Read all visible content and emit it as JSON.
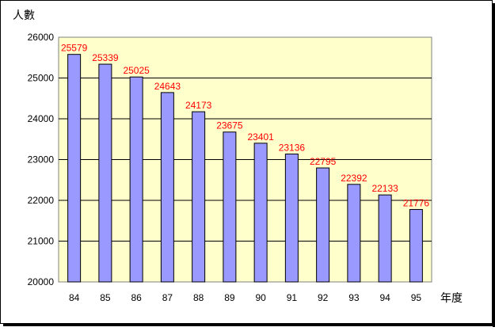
{
  "chart_data": {
    "type": "bar",
    "categories": [
      "84",
      "85",
      "86",
      "87",
      "88",
      "89",
      "90",
      "91",
      "92",
      "93",
      "94",
      "95"
    ],
    "values": [
      25579,
      25339,
      25025,
      24643,
      24173,
      23675,
      23401,
      23136,
      22795,
      22392,
      22133,
      21776
    ],
    "data_labels": [
      "25579",
      "25339",
      "25025",
      "24643",
      "24173",
      "23675",
      "23401",
      "23136",
      "22795",
      "22392",
      "22133",
      "21776"
    ],
    "ylabel": "人數",
    "xlabel": "年度",
    "ylim": [
      20000,
      26000
    ],
    "yticks": [
      "20000",
      "21000",
      "22000",
      "23000",
      "24000",
      "25000",
      "26000"
    ],
    "grid": true,
    "legend": "none",
    "colors": {
      "plot_background": "#ffffcc",
      "bar_fill": "#9999ff",
      "bar_stroke": "#000000",
      "data_label": "#ff0000",
      "gridline": "#000000"
    }
  }
}
